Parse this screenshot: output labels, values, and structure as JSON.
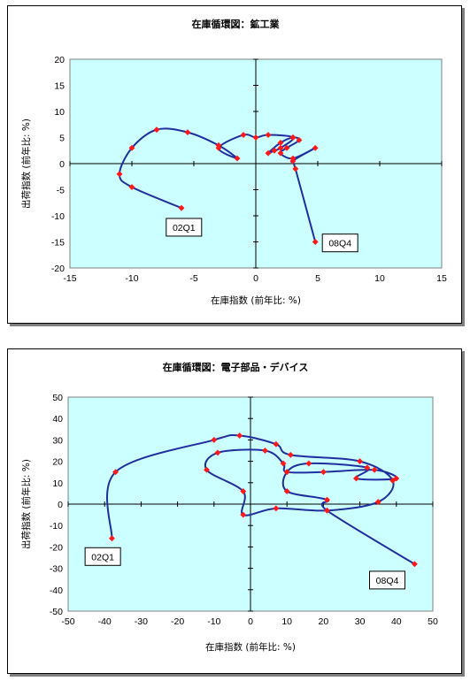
{
  "colors": {
    "plot_bg": "#ccffff",
    "line": "#1f2f9f",
    "marker": "#ff1a1a",
    "frame": "#000000"
  },
  "chart_data": [
    {
      "type": "scatter",
      "title": "在庫循環図：鉱工業",
      "xlabel": "在庫指数 (前年比: %)",
      "ylabel": "出荷指数 (前年比: %)",
      "xlim": [
        -15,
        15
      ],
      "ylim": [
        -20,
        20
      ],
      "xticks": [
        -15,
        -10,
        -5,
        0,
        5,
        10,
        15
      ],
      "yticks": [
        -20,
        -15,
        -10,
        -5,
        0,
        5,
        10,
        15,
        20
      ],
      "grid": false,
      "series": [
        {
          "x": [
            -6,
            -10,
            -11,
            -10,
            -8,
            -5.5,
            -3,
            -1.5,
            -3,
            -1,
            0,
            1,
            3,
            2,
            1.5,
            1,
            2,
            3,
            3.5,
            2.5,
            2,
            3,
            4.8,
            3,
            3.2,
            4.8
          ],
          "y": [
            -8.5,
            -4.5,
            -2,
            3,
            6.5,
            6,
            3.5,
            1,
            3,
            5.5,
            5,
            5.5,
            5,
            3,
            2.5,
            2,
            4,
            5,
            4.5,
            3,
            2,
            1,
            3,
            0.5,
            -1,
            -15
          ]
        }
      ],
      "annotations": [
        {
          "text": "02Q1",
          "x": -5.8,
          "y": -12.2
        },
        {
          "text": "08Q4",
          "x": 6.8,
          "y": -15.2
        }
      ]
    },
    {
      "type": "scatter",
      "title": "在庫循環図：電子部品・デバイス",
      "xlabel": "在庫指数 (前年比: %)",
      "ylabel": "出荷指数 (前年比: %)",
      "xlim": [
        -50,
        50
      ],
      "ylim": [
        -50,
        50
      ],
      "xticks": [
        -50,
        -40,
        -30,
        -20,
        -10,
        0,
        10,
        20,
        30,
        40,
        50
      ],
      "yticks": [
        -50,
        -40,
        -30,
        -20,
        -10,
        0,
        10,
        20,
        30,
        40,
        50
      ],
      "grid": false,
      "series": [
        {
          "x": [
            -38,
            -37,
            -10,
            -3,
            7,
            11,
            30,
            39,
            35,
            21,
            7,
            -2,
            -2,
            -12,
            -9,
            4,
            9,
            10,
            20,
            34,
            40,
            29,
            32,
            16,
            10,
            10,
            21,
            21,
            45
          ],
          "y": [
            -16,
            15,
            30,
            32,
            28,
            23,
            20,
            11,
            1,
            -3,
            -2,
            -5,
            6,
            16,
            24,
            25,
            19,
            15,
            15,
            16,
            12,
            12,
            17,
            19,
            15,
            6,
            2,
            -3,
            -28
          ]
        }
      ],
      "annotations": [
        {
          "text": "02Q1",
          "x": -40.5,
          "y": -24.5
        },
        {
          "text": "08Q4",
          "x": 37.5,
          "y": -35.5
        }
      ]
    }
  ]
}
